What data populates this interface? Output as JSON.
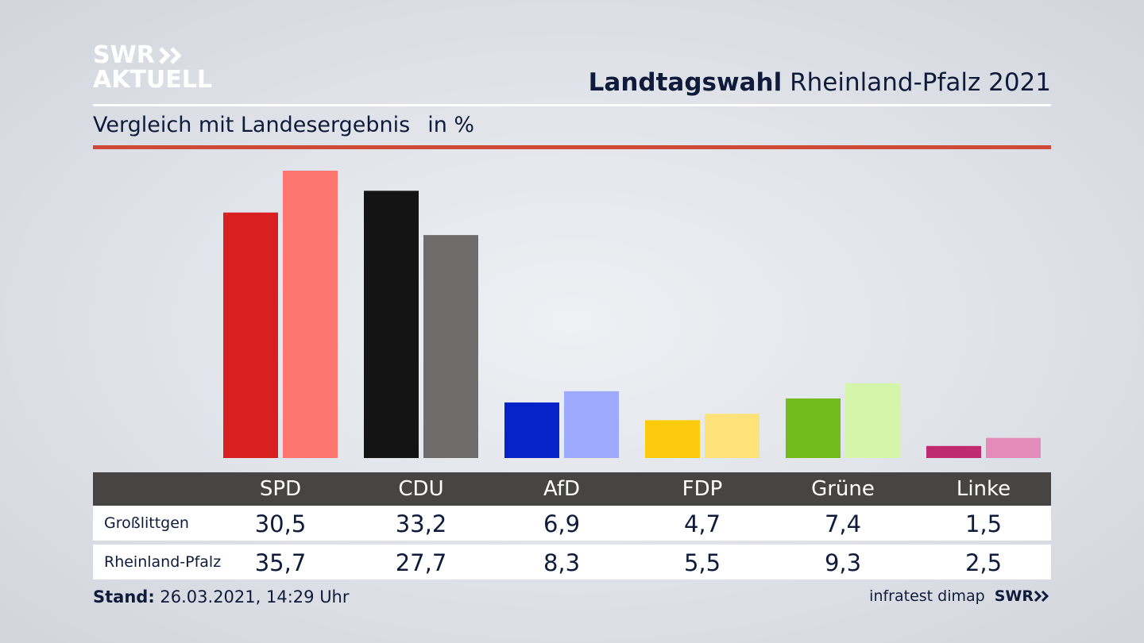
{
  "logo": {
    "line1": "SWR",
    "line2": "AKTUELL"
  },
  "header": {
    "title_bold": "Landtagswahl",
    "title_rest": "Rheinland-Pfalz 2021"
  },
  "subtitle": {
    "text": "Vergleich mit Landesergebnis",
    "unit": "in %"
  },
  "chart_data": {
    "type": "bar",
    "title": "Landtagswahl Rheinland-Pfalz 2021",
    "subtitle": "Vergleich mit Landesergebnis in %",
    "categories": [
      "SPD",
      "CDU",
      "AfD",
      "FDP",
      "Grüne",
      "Linke"
    ],
    "series": [
      {
        "name": "Großlittgen",
        "values": [
          30.5,
          33.2,
          6.9,
          4.7,
          7.4,
          1.5
        ]
      },
      {
        "name": "Rheinland-Pfalz",
        "values": [
          35.7,
          27.7,
          8.3,
          5.5,
          9.3,
          2.5
        ]
      }
    ],
    "display_values": [
      [
        "30,5",
        "33,2",
        "6,9",
        "4,7",
        "7,4",
        "1,5"
      ],
      [
        "35,7",
        "27,7",
        "8,3",
        "5,5",
        "9,3",
        "2,5"
      ]
    ],
    "colors": [
      [
        "#d7201f",
        "#ff7570"
      ],
      [
        "#141414",
        "#6e6d6b"
      ],
      [
        "#0523c9",
        "#9eaafd"
      ],
      [
        "#fdcb0e",
        "#fde27a"
      ],
      [
        "#72bc1f",
        "#d5f5ab"
      ],
      [
        "#bf2b6e",
        "#e38cb9"
      ]
    ],
    "ylim": [
      0,
      35.7
    ],
    "grid": false,
    "legend": "table below chart"
  },
  "footer": {
    "stand_label": "Stand:",
    "stand_value": "26.03.2021, 14:29 Uhr",
    "source": "infratest dimap",
    "brand": "SWR"
  }
}
